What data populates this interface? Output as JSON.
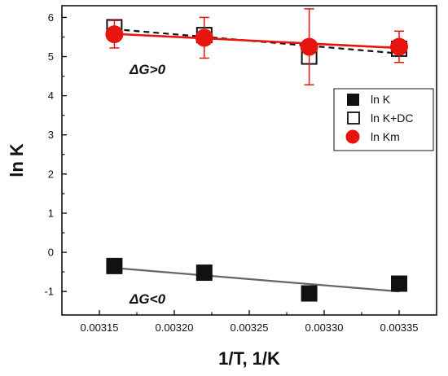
{
  "chart_data": {
    "type": "scatter",
    "xlabel": "1/T, 1/K",
    "ylabel": "ln K",
    "xlim": [
      0.003125,
      0.003375
    ],
    "ylim": [
      -1.6,
      6.3
    ],
    "x_ticks": [
      0.00315,
      0.0032,
      0.00325,
      0.0033,
      0.00335
    ],
    "x_tick_labels": [
      "0.00315",
      "0.00320",
      "0.00325",
      "0.00330",
      "0.00335"
    ],
    "y_ticks": [
      -1,
      0,
      1,
      2,
      3,
      4,
      5,
      6
    ],
    "y_tick_labels": [
      "-1",
      "0",
      "1",
      "2",
      "3",
      "4",
      "5",
      "6"
    ],
    "grid": false,
    "legend_position": "right",
    "series": [
      {
        "name": "ln K",
        "marker": "filled-square",
        "color": "#111111",
        "x": [
          0.00316,
          0.00322,
          0.00329,
          0.00335
        ],
        "y": [
          -0.35,
          -0.52,
          -1.05,
          -0.8
        ],
        "fit": {
          "style": "solid",
          "color": "#666666",
          "x": [
            0.00316,
            0.00335
          ],
          "y": [
            -0.4,
            -1.0
          ]
        }
      },
      {
        "name": "ln K+DC",
        "marker": "open-square",
        "color": "#111111",
        "x": [
          0.00316,
          0.00322,
          0.00329,
          0.00335
        ],
        "y": [
          5.75,
          5.55,
          5.0,
          5.2
        ],
        "fit": {
          "style": "dashed",
          "color": "#111111",
          "x": [
            0.00316,
            0.00335
          ],
          "y": [
            5.7,
            5.08
          ]
        }
      },
      {
        "name": "ln Km",
        "marker": "filled-circle",
        "color": "#e8140e",
        "x": [
          0.00316,
          0.00322,
          0.00329,
          0.00335
        ],
        "y": [
          5.57,
          5.48,
          5.25,
          5.25
        ],
        "error": [
          0.35,
          0.52,
          0.97,
          0.4
        ],
        "fit": {
          "style": "solid",
          "color": "#e8140e",
          "x": [
            0.00316,
            0.00335
          ],
          "y": [
            5.58,
            5.22
          ]
        }
      }
    ],
    "annotations": [
      {
        "text": "ΔG>0",
        "x": 0.00318,
        "y": 4.75
      },
      {
        "text": "ΔG<0",
        "x": 0.00318,
        "y": -1.05
      }
    ]
  }
}
